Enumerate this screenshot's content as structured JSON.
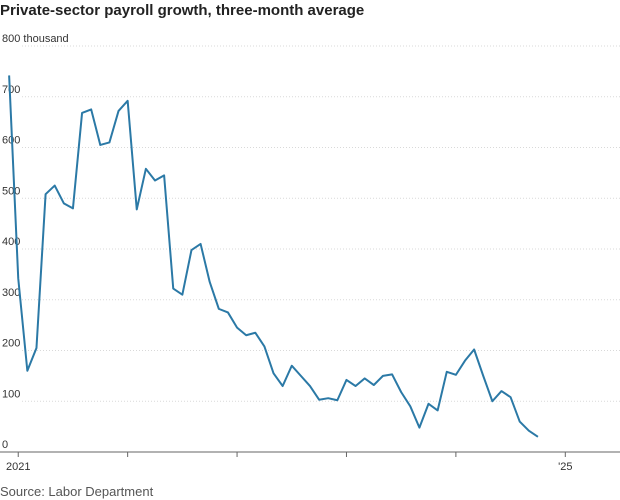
{
  "chart_data": {
    "type": "line",
    "title": "Private-sector payroll growth, three-month average",
    "unit_label": "800 thousand",
    "source": "Source: Labor Department",
    "xlabel": "",
    "ylabel": "",
    "ylim": [
      0,
      800
    ],
    "yticks": [
      0,
      100,
      200,
      300,
      400,
      500,
      600,
      700,
      800
    ],
    "ytick_labels": [
      "0",
      "100",
      "200",
      "300",
      "400",
      "500",
      "600",
      "700",
      "800 thousand"
    ],
    "xticks": [
      {
        "month_index": 1,
        "label": "2021"
      },
      {
        "month_index": 13,
        "label": ""
      },
      {
        "month_index": 25,
        "label": ""
      },
      {
        "month_index": 37,
        "label": ""
      },
      {
        "month_index": 49,
        "label": ""
      },
      {
        "month_index": 61,
        "label": "'25"
      }
    ],
    "x_range": [
      -1,
      67
    ],
    "series": [
      {
        "name": "Private-sector payroll growth",
        "color": "#2b79a6",
        "values": [
          742,
          342,
          160,
          205,
          508,
          525,
          490,
          480,
          668,
          675,
          605,
          610,
          672,
          692,
          478,
          558,
          535,
          545,
          322,
          310,
          398,
          410,
          335,
          282,
          275,
          245,
          230,
          235,
          208,
          155,
          130,
          170,
          150,
          130,
          103,
          106,
          102,
          142,
          130,
          145,
          132,
          150,
          153,
          118,
          90,
          48,
          95,
          82,
          158,
          152,
          180,
          202,
          150,
          100,
          120,
          108,
          60,
          42,
          30
        ]
      }
    ]
  }
}
